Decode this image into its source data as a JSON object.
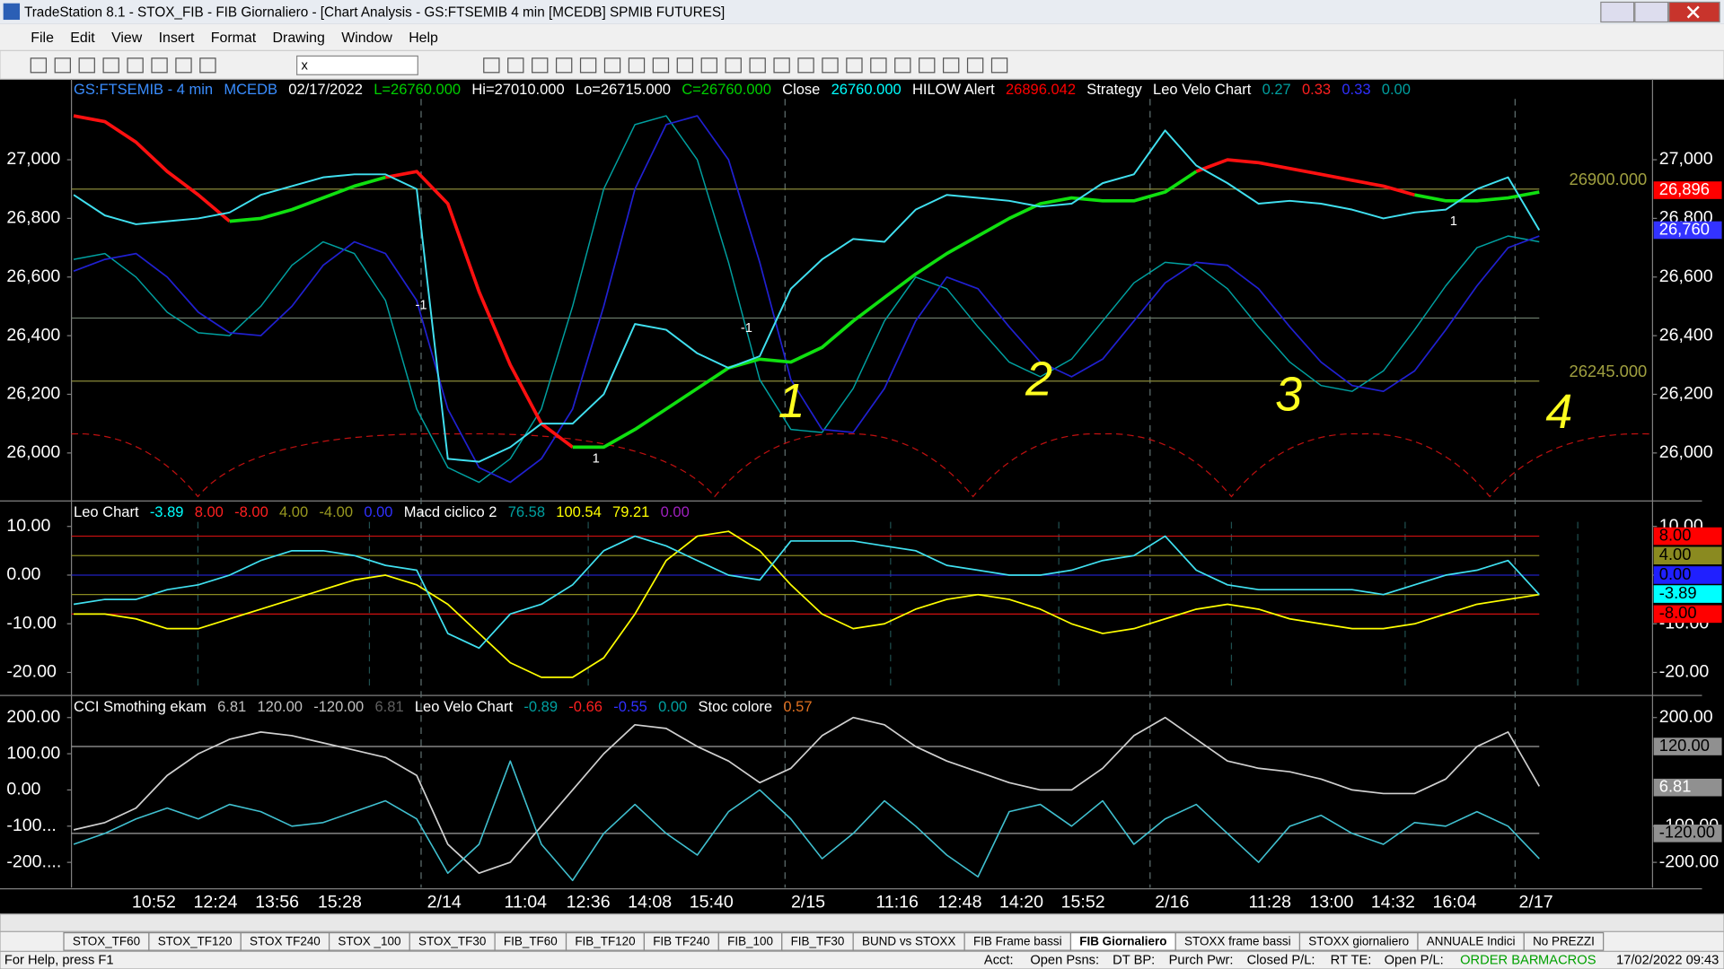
{
  "window": {
    "title": "TradeStation 8.1 - STOX_FIB - FIB Giornaliero - [Chart Analysis - GS:FTSEMIB  4 min  [MCEDB] SPMIB FUTURES]",
    "menu": [
      "File",
      "Edit",
      "View",
      "Insert",
      "Format",
      "Drawing",
      "Window",
      "Help"
    ],
    "symbol_box": "x"
  },
  "panels": [
    {
      "header": [
        {
          "text": "GS:FTSEMIB - 4 min",
          "color": "#3a8dff"
        },
        {
          "text": "MCEDB",
          "color": "#3a8dff"
        },
        {
          "text": "02/17/2022",
          "color": "#ffffff"
        },
        {
          "text": "L=26760.000",
          "color": "#00d000"
        },
        {
          "text": "Hi=27010.000",
          "color": "#ffffff"
        },
        {
          "text": "Lo=26715.000",
          "color": "#ffffff"
        },
        {
          "text": "C=26760.000",
          "color": "#00d000"
        },
        {
          "text": "Close",
          "color": "#ffffff"
        },
        {
          "text": "26760.000",
          "color": "#00ffff"
        },
        {
          "text": "HILOW Alert",
          "color": "#ffffff"
        },
        {
          "text": "26896.042",
          "color": "#ff0000"
        },
        {
          "text": "Strategy",
          "color": "#ffffff"
        },
        {
          "text": "Leo Velo Chart",
          "color": "#ffffff"
        },
        {
          "text": "0.27",
          "color": "#00a0a0"
        },
        {
          "text": "0.33",
          "color": "#ff2020"
        },
        {
          "text": "0.33",
          "color": "#3030ff"
        },
        {
          "text": "0.00",
          "color": "#00a0a0"
        }
      ],
      "ylim": [
        25840,
        27275
      ],
      "yticks": [
        {
          "value": 27000,
          "label": "27,000"
        },
        {
          "value": 26800,
          "label": "26,800"
        },
        {
          "value": 26600,
          "label": "26,600"
        },
        {
          "value": 26400,
          "label": "26,400"
        },
        {
          "value": 26200,
          "label": "26,200"
        },
        {
          "value": 26000,
          "label": "26,000"
        }
      ],
      "levels": [
        {
          "value": 26900,
          "label": "26900.000",
          "color": "#8a8a3a"
        },
        {
          "value": 26460,
          "color": "#6a7a6a"
        },
        {
          "value": 26245,
          "label": "26245.000",
          "color": "#8a8a3a"
        }
      ],
      "right_labels": [
        {
          "value": 26896,
          "label": "26,896",
          "bg": "#ff0000",
          "fg": "#ffffff"
        },
        {
          "value": 26760,
          "label": "26,760",
          "bg": "#3333ff",
          "fg": "#ffffff"
        }
      ],
      "series": [
        {
          "color": "#00a0a0",
          "width": 1.2,
          "values": [
            26660,
            26680,
            26600,
            26480,
            26410,
            26400,
            26500,
            26640,
            26720,
            26680,
            26520,
            26150,
            25950,
            25900,
            25980,
            26150,
            26500,
            26900,
            27120,
            27150,
            27000,
            26650,
            26250,
            26080,
            26070,
            26220,
            26450,
            26600,
            26560,
            26430,
            26310,
            26260,
            26320,
            26450,
            26580,
            26650,
            26640,
            26560,
            26430,
            26310,
            26230,
            26210,
            26280,
            26420,
            26570,
            26700,
            26740,
            26720
          ]
        },
        {
          "color": "#2020d0",
          "width": 1.4,
          "values": [
            26620,
            26660,
            26680,
            26600,
            26480,
            26410,
            26400,
            26500,
            26640,
            26720,
            26680,
            26520,
            26150,
            25950,
            25900,
            25980,
            26150,
            26500,
            26900,
            27120,
            27150,
            27000,
            26650,
            26250,
            26080,
            26070,
            26220,
            26450,
            26600,
            26560,
            26430,
            26310,
            26260,
            26320,
            26450,
            26580,
            26650,
            26640,
            26560,
            26430,
            26310,
            26230,
            26210,
            26280,
            26420,
            26570,
            26700,
            26740
          ]
        },
        {
          "color": "#ff1010",
          "width": 3,
          "values": [
            27150,
            27130,
            27060,
            26960,
            26880,
            26790,
            null,
            null,
            null,
            null,
            26940,
            26960,
            26850,
            26550,
            26300,
            26100,
            26020,
            null,
            null,
            null,
            null,
            null,
            null,
            null,
            null,
            null,
            null,
            null,
            null,
            null,
            null,
            null,
            null,
            null,
            null,
            null,
            26960,
            27000,
            26990,
            26970,
            26950,
            26930,
            26910,
            26880,
            null,
            null,
            null,
            null
          ]
        },
        {
          "color": "#10e010",
          "width": 3,
          "values": [
            null,
            null,
            null,
            null,
            null,
            26790,
            26800,
            26830,
            26870,
            26910,
            26940,
            null,
            null,
            null,
            null,
            null,
            26020,
            26020,
            26080,
            26150,
            26220,
            26290,
            26320,
            26310,
            26360,
            26450,
            26530,
            26610,
            26680,
            26740,
            26800,
            26850,
            26870,
            26860,
            26860,
            26890,
            26960,
            null,
            null,
            null,
            null,
            null,
            null,
            26880,
            26860,
            26860,
            26870,
            26890
          ]
        },
        {
          "color": "#40e0f0",
          "width": 1.6,
          "values": [
            26880,
            26810,
            26780,
            26790,
            26800,
            26820,
            26880,
            26910,
            26940,
            26950,
            26950,
            26900,
            25980,
            25970,
            26020,
            26100,
            26100,
            26200,
            26440,
            26420,
            26340,
            26290,
            26330,
            26560,
            26660,
            26730,
            26720,
            26830,
            26880,
            26870,
            26860,
            26840,
            26850,
            26920,
            26950,
            27100,
            26980,
            26920,
            26850,
            26860,
            26850,
            26830,
            26800,
            26820,
            26830,
            26900,
            26940,
            26760
          ]
        }
      ],
      "markers": [
        "-1",
        "1",
        "-1",
        "1"
      ],
      "annotations": [
        "1",
        "2",
        "3",
        "4"
      ]
    },
    {
      "header": [
        {
          "text": "Leo Chart",
          "color": "#ffffff"
        },
        {
          "text": "-3.89",
          "color": "#00ffff"
        },
        {
          "text": "8.00",
          "color": "#ff2020"
        },
        {
          "text": "-8.00",
          "color": "#ff2020"
        },
        {
          "text": "4.00",
          "color": "#9a9a20"
        },
        {
          "text": "-4.00",
          "color": "#9a9a20"
        },
        {
          "text": "0.00",
          "color": "#3030ff"
        },
        {
          "text": "Macd ciclico 2",
          "color": "#ffffff"
        },
        {
          "text": "76.58",
          "color": "#00a0a0"
        },
        {
          "text": "100.54",
          "color": "#ffff00"
        },
        {
          "text": "79.21",
          "color": "#ffff00"
        },
        {
          "text": "0.00",
          "color": "#a020c0"
        }
      ],
      "ylim": [
        -24.5,
        15
      ],
      "yticks": [
        {
          "value": 10,
          "label": "10.00"
        },
        {
          "value": 0,
          "label": "0.00"
        },
        {
          "value": -10,
          "label": "-10.00"
        },
        {
          "value": -20,
          "label": "-20.00"
        }
      ],
      "levels": [
        {
          "value": 8,
          "color": "#d01010"
        },
        {
          "value": 4,
          "color": "#8a8a20"
        },
        {
          "value": 0,
          "color": "#2020c0"
        },
        {
          "value": -4,
          "color": "#8a8a20"
        },
        {
          "value": -8,
          "color": "#d01010"
        }
      ],
      "right_labels": [
        {
          "value": 8,
          "label": "8.00",
          "bg": "#ff0000",
          "fg": "#000000"
        },
        {
          "value": 4,
          "label": "4.00",
          "bg": "#8a8a20",
          "fg": "#000000"
        },
        {
          "value": 0,
          "label": "0.00",
          "bg": "#2020ff",
          "fg": "#000000"
        },
        {
          "value": -3.89,
          "label": "-3.89",
          "bg": "#00ffff",
          "fg": "#000000"
        },
        {
          "value": -8,
          "label": "-8.00",
          "bg": "#ff0000",
          "fg": "#000000"
        }
      ],
      "series": [
        {
          "color": "#ffff00",
          "width": 1.4,
          "values": [
            -8,
            -8,
            -9,
            -11,
            -11,
            -9,
            -7,
            -5,
            -3,
            -1,
            0,
            -2,
            -6,
            -12,
            -18,
            -21,
            -21,
            -17,
            -8,
            3,
            8,
            9,
            5,
            -2,
            -8,
            -11,
            -10,
            -7,
            -5,
            -4,
            -5,
            -7,
            -10,
            -12,
            -11,
            -9,
            -7,
            -6,
            -7,
            -9,
            -10,
            -11,
            -11,
            -10,
            -8,
            -6,
            -5,
            -4
          ]
        },
        {
          "color": "#40e0f0",
          "width": 1.4,
          "values": [
            -6,
            -5,
            -5,
            -3,
            -2,
            0,
            3,
            5,
            5,
            4,
            2,
            1,
            -12,
            -15,
            -8,
            -6,
            -2,
            5,
            8,
            6,
            3,
            0,
            -1,
            7,
            7,
            7,
            6,
            5,
            2,
            1,
            0,
            0,
            1,
            3,
            4,
            8,
            1,
            -2,
            -3,
            -3,
            -3,
            -3,
            -4,
            -2,
            0,
            1,
            3,
            -4
          ]
        }
      ]
    },
    {
      "header": [
        {
          "text": "CCI Smothing ekam",
          "color": "#ffffff"
        },
        {
          "text": "6.81",
          "color": "#c0c0c0"
        },
        {
          "text": "120.00",
          "color": "#c0c0c0"
        },
        {
          "text": "-120.00",
          "color": "#c0c0c0"
        },
        {
          "text": "6.81",
          "color": "#606060"
        },
        {
          "text": "Leo Velo Chart",
          "color": "#ffffff"
        },
        {
          "text": "-0.89",
          "color": "#00a0a0"
        },
        {
          "text": "-0.66",
          "color": "#ff2020"
        },
        {
          "text": "-0.55",
          "color": "#3030ff"
        },
        {
          "text": "0.00",
          "color": "#00a0a0"
        },
        {
          "text": "Stoc colore",
          "color": "#ffffff"
        },
        {
          "text": "0.57",
          "color": "#e07020"
        }
      ],
      "ylim": [
        -270,
        258
      ],
      "yticks": [
        {
          "value": 200,
          "label": "200.00"
        },
        {
          "value": 100,
          "label": "100.00"
        },
        {
          "value": 0,
          "label": "0.00"
        },
        {
          "value": -100,
          "label": "-100..."
        },
        {
          "value": -200,
          "label": "-200...."
        }
      ],
      "yticks_right": [
        {
          "value": 200,
          "label": "200.00"
        },
        {
          "value": -100,
          "label": "-100.00"
        },
        {
          "value": -200,
          "label": "-200.00"
        }
      ],
      "levels": [
        {
          "value": 120,
          "color": "#a0a0a0"
        },
        {
          "value": -120,
          "color": "#a0a0a0"
        }
      ],
      "right_labels": [
        {
          "value": 120,
          "label": "120.00",
          "bg": "#909090",
          "fg": "#000000"
        },
        {
          "value": 6.81,
          "label": "6.81",
          "bg": "#909090",
          "fg": "#ffffff"
        },
        {
          "value": -120,
          "label": "-120.00",
          "bg": "#909090",
          "fg": "#000000"
        }
      ],
      "series": [
        {
          "color": "#d0d0d0",
          "width": 1.4,
          "values": [
            -110,
            -90,
            -50,
            40,
            100,
            140,
            160,
            150,
            130,
            110,
            90,
            40,
            -150,
            -230,
            -200,
            -100,
            0,
            100,
            180,
            170,
            120,
            80,
            20,
            60,
            150,
            200,
            180,
            120,
            80,
            50,
            20,
            0,
            0,
            60,
            150,
            200,
            140,
            80,
            60,
            50,
            30,
            0,
            -10,
            -10,
            30,
            120,
            160,
            10
          ]
        },
        {
          "color": "#40c0d0",
          "width": 1.3,
          "values": [
            -150,
            -120,
            -80,
            -50,
            -80,
            -40,
            -60,
            -100,
            -90,
            -60,
            -30,
            -80,
            -230,
            -150,
            80,
            -150,
            -250,
            -120,
            -40,
            -120,
            -180,
            -60,
            0,
            -80,
            -190,
            -120,
            -30,
            -100,
            -180,
            -240,
            -60,
            -40,
            -100,
            -30,
            -150,
            -80,
            -40,
            -120,
            -200,
            -100,
            -70,
            -120,
            -150,
            -90,
            -100,
            -60,
            -100,
            -190
          ]
        }
      ]
    }
  ],
  "x_labels": [
    "10:52",
    "12:24",
    "13:56",
    "15:28",
    "2/14",
    "11:04",
    "12:36",
    "14:08",
    "15:40",
    "2/15",
    "11:16",
    "12:48",
    "14:20",
    "15:52",
    "2/16",
    "11:28",
    "13:00",
    "14:32",
    "16:04",
    "2/17"
  ],
  "tabs": [
    "STOX_TF60",
    "STOX_TF120",
    "STOX TF240",
    "STOX _100",
    "STOX_TF30",
    "FIB_TF60",
    "FIB_TF120",
    "FIB TF240",
    "FIB_100",
    "FIB_TF30",
    "BUND vs STOXX",
    "FIB Frame bassi",
    "FIB Giornaliero",
    "STOXX frame bassi",
    "STOXX giornaliero",
    "ANNUALE Indici",
    "No PREZZI"
  ],
  "active_tab": 12,
  "status": [
    {
      "text": "For Help, press F1",
      "color": "#000000"
    },
    {
      "text": "Acct:",
      "color": "#000000"
    },
    {
      "text": "Open Psns:",
      "color": "#000000"
    },
    {
      "text": "DT BP:",
      "color": "#000000"
    },
    {
      "text": "Purch Pwr:",
      "color": "#000000"
    },
    {
      "text": "Closed P/L:",
      "color": "#000000"
    },
    {
      "text": "RT TE:",
      "color": "#000000"
    },
    {
      "text": "Open P/L:",
      "color": "#000000"
    },
    {
      "text": "ORDER BAR",
      "color": "#00a000"
    },
    {
      "text": "MACROS",
      "color": "#00a000"
    },
    {
      "text": "17/02/2022 09:43",
      "color": "#000000"
    }
  ]
}
